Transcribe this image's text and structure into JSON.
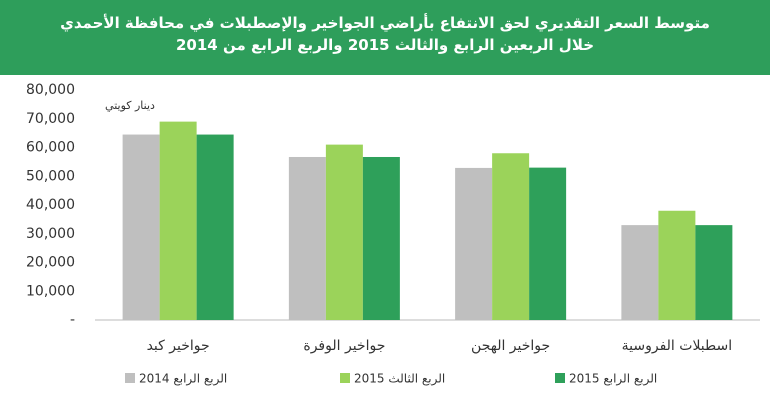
{
  "chart_data": {
    "type": "bar",
    "title": "متوسط السعر التقديري لحق الانتفاع بأراضي الجواخير والإصطبلات في محافظة الأحمدي",
    "subtitle": "خلال الربعين الرابع والثالث 2015 والربع الرابع من 2014",
    "y_label": "دينار كويتي",
    "categories": [
      "جواخير كبد",
      "جواخير الوفرة",
      "جواخير الهجن",
      "اسطبلات الفروسية"
    ],
    "series": [
      {
        "name": "الربع الرابع 2014",
        "color": "#bfbfbf",
        "values": [
          64500,
          56700,
          52900,
          33000
        ]
      },
      {
        "name": "الربع الثالث 2015",
        "color": "#9bd35a",
        "values": [
          69000,
          61000,
          58000,
          38000
        ]
      },
      {
        "name": "الربع الرابع 2015",
        "color": "#2ea05a",
        "values": [
          64500,
          56700,
          53000,
          33000
        ]
      }
    ],
    "ylim": [
      0,
      80000
    ],
    "yticks": [
      {
        "value": 0,
        "label": "-"
      },
      {
        "value": 10000,
        "label": "10,000"
      },
      {
        "value": 20000,
        "label": "20,000"
      },
      {
        "value": 30000,
        "label": "30,000"
      },
      {
        "value": 40000,
        "label": "40,000"
      },
      {
        "value": 50000,
        "label": "50,000"
      },
      {
        "value": 60000,
        "label": "60,000"
      },
      {
        "value": 70000,
        "label": "70,000"
      },
      {
        "value": 80000,
        "label": "80,000"
      }
    ],
    "grid": false,
    "legend": "bottom"
  }
}
